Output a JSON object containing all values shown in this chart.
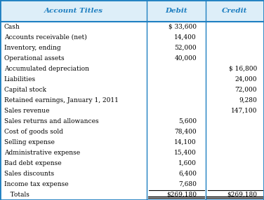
{
  "header": [
    "Account Titles",
    "Debit",
    "Credit"
  ],
  "header_color": "#1e7fc1",
  "header_bg": "#ddeef8",
  "rows": [
    [
      "Cash",
      "$ 33,600",
      ""
    ],
    [
      "Accounts receivable (net)",
      "14,400",
      ""
    ],
    [
      "Inventory, ending",
      "52,000",
      ""
    ],
    [
      "Operational assets",
      "40,000",
      ""
    ],
    [
      "Accumulated depreciation",
      "",
      "$ 16,800"
    ],
    [
      "Liabilities",
      "",
      "24,000"
    ],
    [
      "Capital stock",
      "",
      "72,000"
    ],
    [
      "Retained earnings, January 1, 2011",
      "",
      "9,280"
    ],
    [
      "Sales revenue",
      "",
      "147,100"
    ],
    [
      "Sales returns and allowances",
      "5,600",
      ""
    ],
    [
      "Cost of goods sold",
      "78,400",
      ""
    ],
    [
      "Selling expense",
      "14,100",
      ""
    ],
    [
      "Administrative expense",
      "15,400",
      ""
    ],
    [
      "Bad debt expense",
      "1,600",
      ""
    ],
    [
      "Sales discounts",
      "6,400",
      ""
    ],
    [
      "Income tax expense",
      "7,680",
      ""
    ]
  ],
  "totals_row": [
    "   Totals",
    "$269,180",
    "$269,180"
  ],
  "bg_color": "#ffffff",
  "border_color": "#1e7fc1",
  "text_color": "#000000",
  "figsize": [
    3.76,
    2.86
  ],
  "dpi": 100,
  "font_size": 6.5,
  "header_font_size": 7.5
}
